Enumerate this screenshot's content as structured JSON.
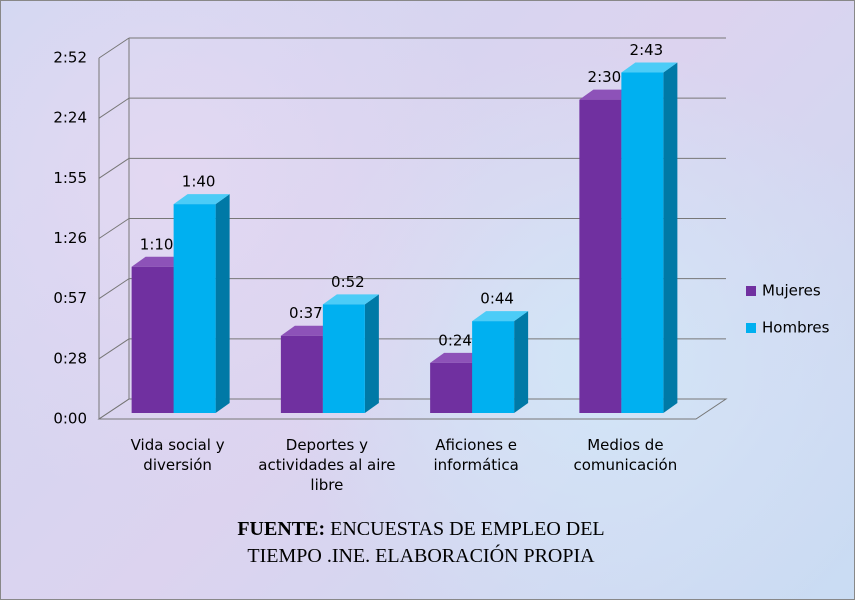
{
  "chart_data": {
    "type": "bar3d",
    "categories": [
      "Vida social y diversión",
      "Deportes y actividades al aire libre",
      "Aficiones e informática",
      "Medios de comunicación"
    ],
    "series": [
      {
        "name": "Mujeres",
        "color": "#7030a0",
        "side": "#4a1d6e",
        "top": "#8d52b8",
        "values": [
          70,
          37,
          24,
          150
        ],
        "value_labels": [
          "1:10",
          "0:37",
          "0:24",
          "2:30"
        ]
      },
      {
        "name": "Hombres",
        "color": "#00b0f0",
        "side": "#0079a6",
        "top": "#4cccf7",
        "values": [
          100,
          52,
          44,
          163
        ],
        "value_labels": [
          "1:40",
          "0:52",
          "0:44",
          "2:43"
        ]
      }
    ],
    "ylim": [
      0,
      172.8
    ],
    "yticks": [
      {
        "value": 0,
        "label": "0:00"
      },
      {
        "value": 28.8,
        "label": "0:28"
      },
      {
        "value": 57.6,
        "label": "0:57"
      },
      {
        "value": 86.4,
        "label": "1:26"
      },
      {
        "value": 115.2,
        "label": "1:55"
      },
      {
        "value": 144,
        "label": "2:24"
      },
      {
        "value": 172.8,
        "label": "2:52"
      }
    ],
    "grid": true,
    "legend": "right",
    "source_label": "FUENTE:",
    "source_text": "ENCUESTAS DE EMPLEO DEL TIEMPO .INE. ELABORACIÓN PROPIA"
  }
}
